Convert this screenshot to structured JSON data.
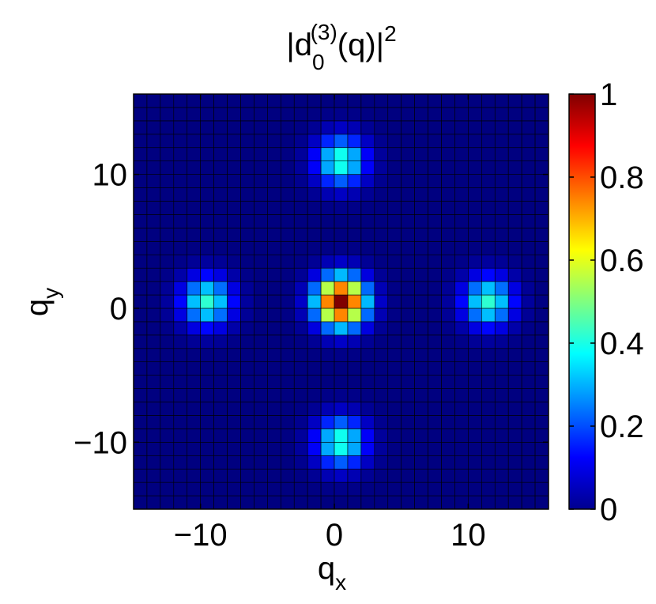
{
  "chart_data": {
    "type": "heatmap",
    "title_base": "|d",
    "title_sup": "(3)",
    "title_sub": "0",
    "title_rest": "(q)|",
    "title_power": "2",
    "xlabel_base": "q",
    "xlabel_sub": "x",
    "ylabel_base": "q",
    "ylabel_sub": "y",
    "xlim": [
      -15,
      16
    ],
    "ylim": [
      -15,
      16
    ],
    "x_ticks": [
      -10,
      0,
      10
    ],
    "x_tick_labels": [
      "−10",
      "0",
      "10"
    ],
    "y_ticks": [
      -10,
      0,
      10
    ],
    "y_tick_labels": [
      "−10",
      "0",
      "10"
    ],
    "colorbar_range": [
      0,
      1
    ],
    "colorbar_ticks": [
      0,
      0.2,
      0.4,
      0.6,
      0.8,
      1
    ],
    "colorbar_tick_labels": [
      "0",
      "0.2",
      "0.4",
      "0.6",
      "0.8",
      "1"
    ],
    "colormap": "jet",
    "grid": false,
    "peaks": [
      {
        "x": 0.5,
        "y": 0.5,
        "peak": 1.0,
        "width": 1.3
      },
      {
        "x": 0.5,
        "y": 11.0,
        "peak": 0.42,
        "width": 1.3
      },
      {
        "x": 0.5,
        "y": -10.0,
        "peak": 0.42,
        "width": 1.3
      },
      {
        "x": -9.5,
        "y": 0.5,
        "peak": 0.42,
        "width": 1.3
      },
      {
        "x": 11.5,
        "y": 0.5,
        "peak": 0.42,
        "width": 1.3
      }
    ]
  }
}
